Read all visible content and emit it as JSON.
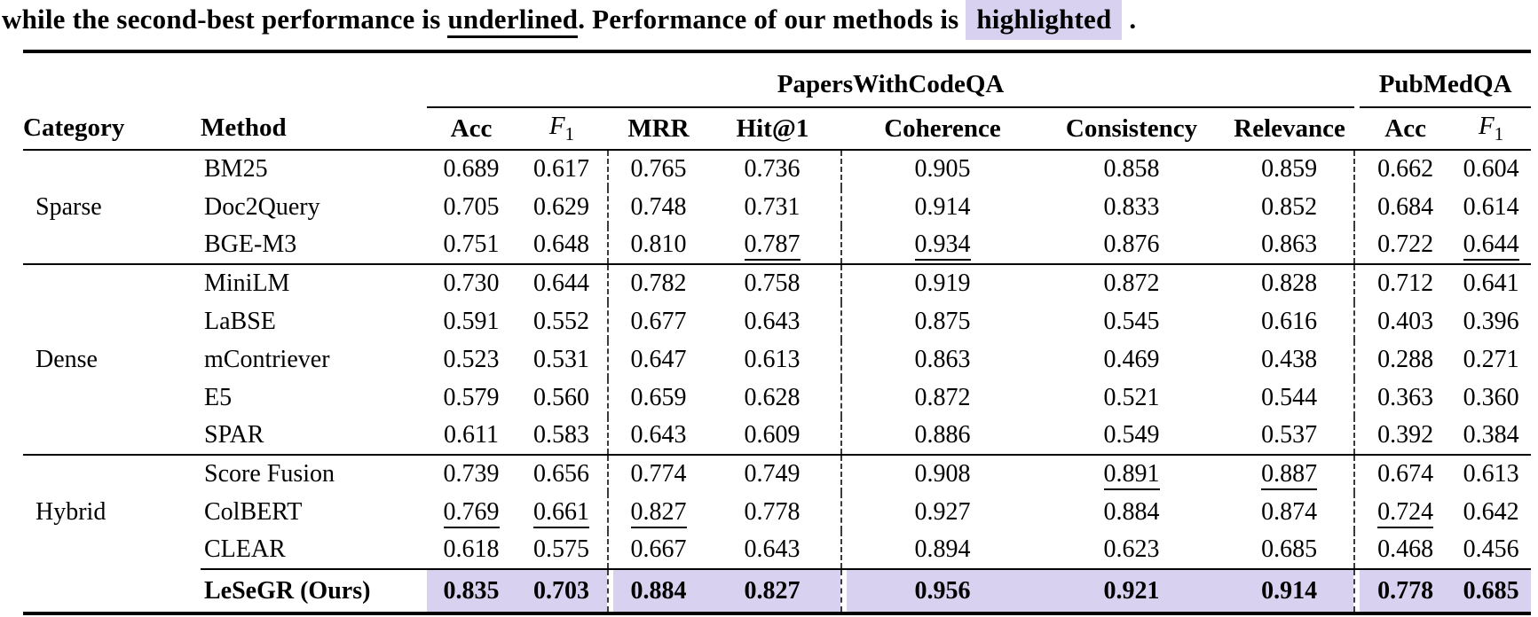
{
  "colors": {
    "highlight": "#d8d2f0"
  },
  "caption": {
    "pre": "while the second-best performance is ",
    "underlined_word": "underlined",
    "mid": ". Performance of our methods is ",
    "highlighted_word": "highlighted",
    "post": " ."
  },
  "table": {
    "group_headers": {
      "papers_with_code_qa": "PapersWithCodeQA",
      "pub_med_qa": "PubMedQA"
    },
    "columns": {
      "category": "Category",
      "method": "Method",
      "acc": "Acc",
      "f1": {
        "base": "F",
        "sub": "1"
      },
      "mrr": "MRR",
      "hit1": "Hit@1",
      "coherence": "Coherence",
      "consistency": "Consistency",
      "relevance": "Relevance",
      "pub_acc": "Acc",
      "pub_f1": {
        "base": "F",
        "sub": "1"
      }
    },
    "groups": [
      {
        "category": "Sparse",
        "rows": [
          {
            "method": "BM25",
            "values": [
              "0.689",
              "0.617",
              "0.765",
              "0.736",
              "0.905",
              "0.858",
              "0.859",
              "0.662",
              "0.604"
            ],
            "underline": []
          },
          {
            "method": "Doc2Query",
            "values": [
              "0.705",
              "0.629",
              "0.748",
              "0.731",
              "0.914",
              "0.833",
              "0.852",
              "0.684",
              "0.614"
            ],
            "underline": []
          },
          {
            "method": "BGE-M3",
            "values": [
              "0.751",
              "0.648",
              "0.810",
              "0.787",
              "0.934",
              "0.876",
              "0.863",
              "0.722",
              "0.644"
            ],
            "underline": [
              3,
              4,
              8
            ]
          }
        ]
      },
      {
        "category": "Dense",
        "rows": [
          {
            "method": "MiniLM",
            "values": [
              "0.730",
              "0.644",
              "0.782",
              "0.758",
              "0.919",
              "0.872",
              "0.828",
              "0.712",
              "0.641"
            ],
            "underline": []
          },
          {
            "method": "LaBSE",
            "values": [
              "0.591",
              "0.552",
              "0.677",
              "0.643",
              "0.875",
              "0.545",
              "0.616",
              "0.403",
              "0.396"
            ],
            "underline": []
          },
          {
            "method": "mContriever",
            "values": [
              "0.523",
              "0.531",
              "0.647",
              "0.613",
              "0.863",
              "0.469",
              "0.438",
              "0.288",
              "0.271"
            ],
            "underline": []
          },
          {
            "method": "E5",
            "values": [
              "0.579",
              "0.560",
              "0.659",
              "0.628",
              "0.872",
              "0.521",
              "0.544",
              "0.363",
              "0.360"
            ],
            "underline": []
          },
          {
            "method": "SPAR",
            "values": [
              "0.611",
              "0.583",
              "0.643",
              "0.609",
              "0.886",
              "0.549",
              "0.537",
              "0.392",
              "0.384"
            ],
            "underline": []
          }
        ]
      },
      {
        "category": "Hybrid",
        "rows": [
          {
            "method": "Score Fusion",
            "values": [
              "0.739",
              "0.656",
              "0.774",
              "0.749",
              "0.908",
              "0.891",
              "0.887",
              "0.674",
              "0.613"
            ],
            "underline": [
              5,
              6
            ]
          },
          {
            "method": "ColBERT",
            "values": [
              "0.769",
              "0.661",
              "0.827",
              "0.778",
              "0.927",
              "0.884",
              "0.874",
              "0.724",
              "0.642"
            ],
            "underline": [
              0,
              1,
              2,
              7
            ]
          },
          {
            "method": "CLEAR",
            "values": [
              "0.618",
              "0.575",
              "0.667",
              "0.643",
              "0.894",
              "0.623",
              "0.685",
              "0.468",
              "0.456"
            ],
            "underline": []
          }
        ]
      }
    ],
    "final_row": {
      "method": "LeSeGR (Ours)",
      "values": [
        "0.835",
        "0.703",
        "0.884",
        "0.827",
        "0.956",
        "0.921",
        "0.914",
        "0.778",
        "0.685"
      ]
    }
  }
}
